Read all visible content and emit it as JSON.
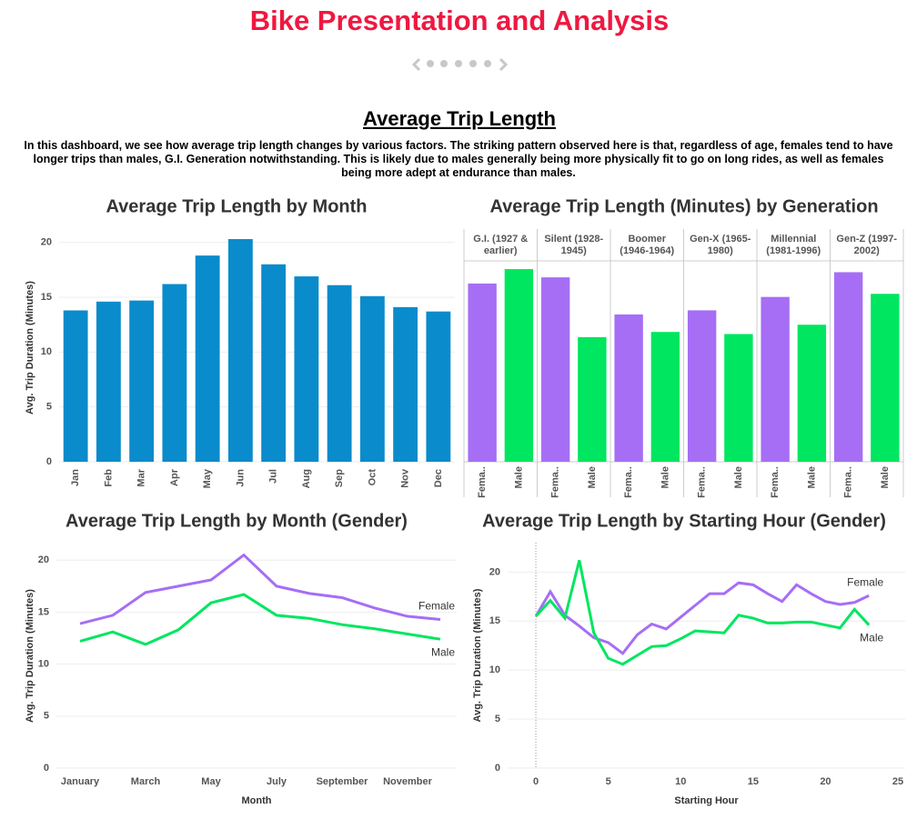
{
  "header": {
    "title": "Bike Presentation and Analysis",
    "subtitle": "Average Trip Length",
    "description": "In this dashboard, we see how average trip length changes by various factors. The striking pattern observed here is that, regardless of age, females tend to have longer trips than males, G.I. Generation notwithstanding. This is likely due to males generally being more physically fit to go on long rides, as well as females being more adept at endurance than males."
  },
  "chart_data": [
    {
      "type": "bar",
      "title": "Average Trip Length by Month",
      "y_label": "Avg. Trip Duration (Minutes)",
      "categories": [
        "Jan",
        "Feb",
        "Mar",
        "Apr",
        "May",
        "Jun",
        "Jul",
        "Aug",
        "Sep",
        "Oct",
        "Nov",
        "Dec"
      ],
      "values": [
        13.8,
        14.6,
        14.7,
        16.2,
        18.8,
        20.3,
        18.0,
        16.9,
        16.1,
        15.1,
        14.1,
        13.7
      ],
      "color": "#0a8bcb",
      "ylim": [
        0,
        20.8
      ],
      "yticks": [
        0,
        5,
        10,
        15,
        20
      ],
      "grid": true
    },
    {
      "type": "bar",
      "title": "Average Trip Length (Minutes) by Generation",
      "categories": [
        "G.I. (1927 & earlier)",
        "Silent (1928-1945)",
        "Boomer (1946-1964)",
        "Gen-X (1965-1980)",
        "Millennial (1981-1996)",
        "Gen-Z (1997-2002)"
      ],
      "series": [
        {
          "name": "Fema..",
          "color": "#a66ef5",
          "values": [
            17.3,
            17.9,
            14.3,
            14.7,
            16.0,
            18.4
          ]
        },
        {
          "name": "Male",
          "color": "#00e660",
          "values": [
            18.7,
            12.1,
            12.6,
            12.4,
            13.3,
            16.3
          ]
        }
      ],
      "ylim": [
        0,
        19.5
      ]
    },
    {
      "type": "line",
      "title": "Average Trip Length by Month (Gender)",
      "y_label": "Avg. Trip Duration (Minutes)",
      "x_label": "Month",
      "categories": [
        "January",
        null,
        "March",
        null,
        "May",
        null,
        "July",
        null,
        "September",
        null,
        "November",
        null
      ],
      "series": [
        {
          "name": "Female",
          "color": "#a66ef5",
          "values": [
            13.9,
            14.7,
            16.9,
            17.5,
            18.1,
            20.5,
            17.5,
            16.8,
            16.4,
            15.4,
            14.6,
            14.3
          ]
        },
        {
          "name": "Male",
          "color": "#00e660",
          "values": [
            12.2,
            13.1,
            11.9,
            13.3,
            15.9,
            16.7,
            14.7,
            14.4,
            13.8,
            13.4,
            12.9,
            12.4
          ]
        }
      ],
      "ylim": [
        0,
        21.6
      ],
      "yticks": [
        0,
        5,
        10,
        15,
        20
      ],
      "grid": true
    },
    {
      "type": "line",
      "title": "Average Trip Length by Starting Hour (Gender)",
      "y_label": "Avg. Trip Duration (Minutes)",
      "x_label": "Starting Hour",
      "x": [
        0,
        1,
        2,
        3,
        4,
        5,
        6,
        7,
        8,
        9,
        10,
        11,
        12,
        13,
        14,
        15,
        16,
        17,
        18,
        19,
        20,
        21,
        22,
        23
      ],
      "series": [
        {
          "name": "Female",
          "color": "#a66ef5",
          "values": [
            15.5,
            18.0,
            15.6,
            14.5,
            13.3,
            12.8,
            11.7,
            13.6,
            14.7,
            14.2,
            15.4,
            16.6,
            17.8,
            17.8,
            18.9,
            18.7,
            17.8,
            17.0,
            18.7,
            17.8,
            17.0,
            16.7,
            16.9,
            17.6
          ]
        },
        {
          "name": "Male",
          "color": "#00e660",
          "values": [
            15.5,
            17.1,
            15.3,
            21.2,
            13.8,
            11.2,
            10.6,
            11.5,
            12.4,
            12.5,
            13.2,
            14.0,
            13.9,
            13.8,
            15.6,
            15.3,
            14.8,
            14.8,
            14.9,
            14.9,
            14.6,
            14.3,
            16.2,
            14.6
          ]
        }
      ],
      "xlim": [
        -1.95,
        25.5
      ],
      "xticks": [
        0,
        5,
        10,
        15,
        20,
        25
      ],
      "ylim": [
        0,
        23
      ],
      "yticks": [
        0,
        5,
        10,
        15,
        20
      ],
      "grid": true
    }
  ]
}
